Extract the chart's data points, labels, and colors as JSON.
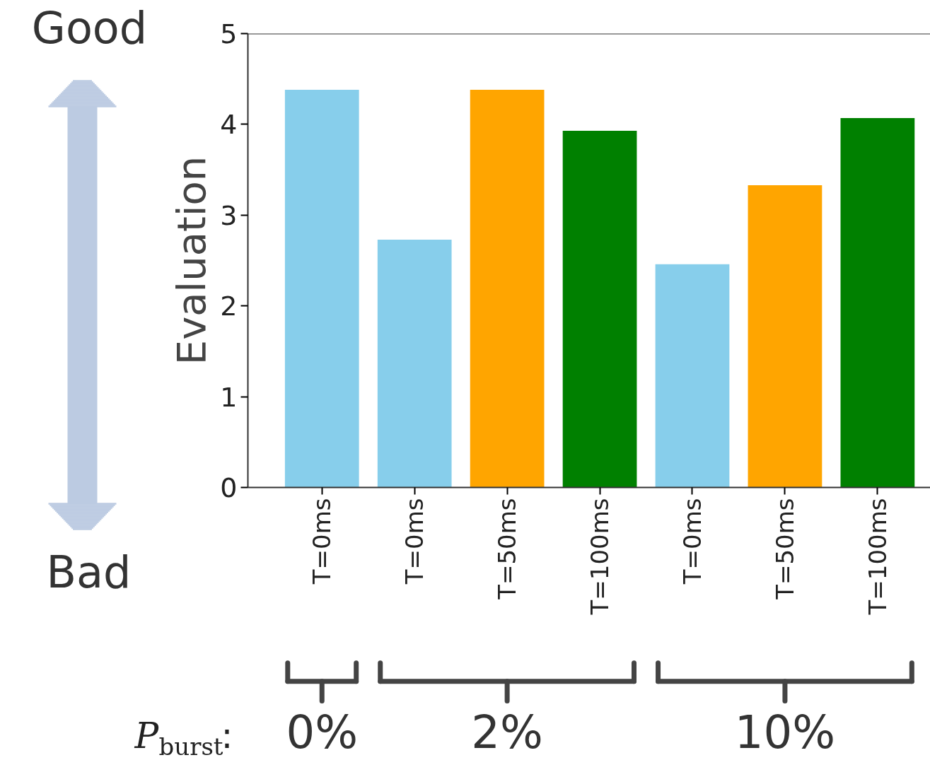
{
  "chart_data": {
    "type": "bar",
    "ylabel": "Evaluation",
    "categories": [
      "T=0ms",
      "T=0ms",
      "T=50ms",
      "T=100ms",
      "T=0ms",
      "T=50ms",
      "T=100ms"
    ],
    "values": [
      4.38,
      2.73,
      4.38,
      3.93,
      2.46,
      3.33,
      4.07
    ],
    "colors": [
      "#87ceeb",
      "#87ceeb",
      "#ffa500",
      "#008000",
      "#87ceeb",
      "#ffa500",
      "#008000"
    ],
    "ylim": [
      0,
      5
    ],
    "yticks": [
      0,
      1,
      2,
      3,
      4,
      5
    ],
    "grid": false,
    "annotations": [
      "Good",
      "Bad",
      "P$_{burst}$:",
      "0%",
      "2%",
      "10%"
    ]
  }
}
